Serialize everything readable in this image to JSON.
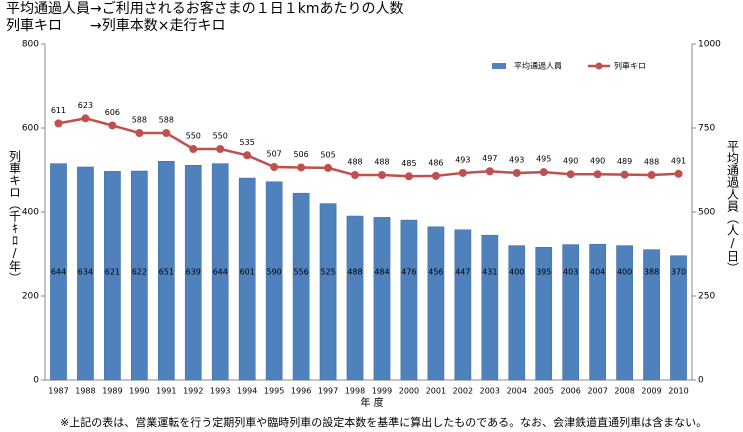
{
  "chart_data": {
    "type": "bar-line",
    "title": "平均通過人員→ご利用されるお客さまの１日１kmあたりの人数",
    "subtitle": "列車キロ　　→列車本数×走行キロ",
    "x_label": "年 度",
    "y_label": "列車キロ（千ｷﾛ/年）",
    "y2_label": "平均通過人員（人/日）",
    "footnote": "※上記の表は、営業運転を行う定期列車や臨時列車の設定本数を基準に算出したものである。なお、会津鉄道直通列車は含まない。",
    "categories": [
      "1987",
      "1988",
      "1989",
      "1990",
      "1991",
      "1992",
      "1993",
      "1994",
      "1995",
      "1996",
      "1997",
      "1998",
      "1999",
      "2000",
      "2001",
      "2002",
      "2003",
      "2004",
      "2005",
      "2006",
      "2007",
      "2008",
      "2009",
      "2010"
    ],
    "series": [
      {
        "name": "平均通過人員",
        "type": "bar",
        "axis": "y2",
        "color": "#4f81bd",
        "values": [
          644,
          634,
          621,
          622,
          651,
          639,
          644,
          601,
          590,
          556,
          525,
          488,
          484,
          476,
          456,
          447,
          431,
          400,
          395,
          403,
          404,
          400,
          388,
          370
        ]
      },
      {
        "name": "列車キロ",
        "type": "line",
        "axis": "y",
        "color": "#c0504d",
        "values": [
          611,
          623,
          606,
          588,
          588,
          550,
          550,
          535,
          507,
          506,
          505,
          488,
          488,
          485,
          486,
          493,
          497,
          493,
          495,
          490,
          490,
          489,
          488,
          491
        ]
      }
    ],
    "ylim": [
      0,
      800
    ],
    "yticks": [
      0,
      200,
      400,
      600,
      800
    ],
    "y2lim": [
      0,
      1000
    ],
    "y2ticks": [
      0,
      250,
      500,
      750,
      1000
    ],
    "legend": "top-right",
    "grid": false
  }
}
